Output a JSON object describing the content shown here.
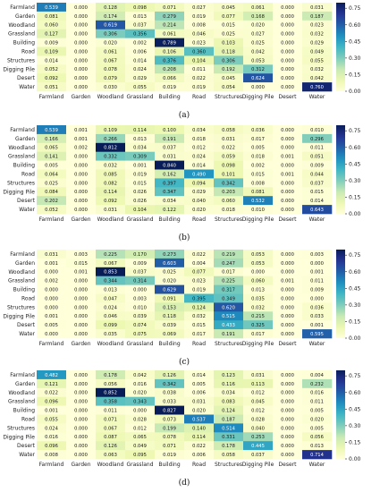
{
  "chart_data": [
    {
      "type": "heatmap",
      "caption": "(a)",
      "rows": [
        "Farmland",
        "Garden",
        "Woodland",
        "Grassland",
        "Building",
        "Road",
        "Structures",
        "Digging Pile",
        "Desert",
        "Water"
      ],
      "cols": [
        "Farmland",
        "Garden",
        "Woodland",
        "Grassland",
        "Building",
        "Road",
        "Structures",
        "Digging Pile",
        "Desert",
        "Water"
      ],
      "values": [
        [
          0.539,
          0.0,
          0.128,
          0.098,
          0.071,
          0.027,
          0.045,
          0.061,
          0.0,
          0.031
        ],
        [
          0.081,
          0.0,
          0.174,
          0.013,
          0.279,
          0.019,
          0.077,
          0.168,
          0.0,
          0.187
        ],
        [
          0.06,
          0.0,
          0.619,
          0.037,
          0.214,
          0.008,
          0.015,
          0.02,
          0.0,
          0.023
        ],
        [
          0.127,
          0.0,
          0.306,
          0.356,
          0.061,
          0.046,
          0.025,
          0.027,
          0.0,
          0.032
        ],
        [
          0.009,
          0.0,
          0.02,
          0.002,
          0.789,
          0.023,
          0.103,
          0.025,
          0.0,
          0.029
        ],
        [
          0.109,
          0.0,
          0.061,
          0.006,
          0.106,
          0.36,
          0.118,
          0.042,
          0.0,
          0.049
        ],
        [
          0.014,
          0.0,
          0.067,
          0.014,
          0.376,
          0.104,
          0.306,
          0.053,
          0.0,
          0.055
        ],
        [
          0.052,
          0.0,
          0.078,
          0.024,
          0.208,
          0.011,
          0.192,
          0.312,
          0.0,
          0.032
        ],
        [
          0.092,
          0.0,
          0.079,
          0.029,
          0.066,
          0.022,
          0.045,
          0.624,
          0.0,
          0.042
        ],
        [
          0.051,
          0.0,
          0.03,
          0.055,
          0.019,
          0.019,
          0.054,
          0.0,
          0.0,
          0.76
        ]
      ],
      "colorbar_ticks": [
        "0.00",
        "0.15",
        "0.30",
        "0.45",
        "0.60",
        "0.75"
      ],
      "vmin": 0,
      "vmax": 0.8
    },
    {
      "type": "heatmap",
      "caption": "(b)",
      "rows": [
        "Farmland",
        "Garden",
        "Woodland",
        "Grassland",
        "Building",
        "Road",
        "Structures",
        "Digging Pile",
        "Desert",
        "Water"
      ],
      "cols": [
        "Farmland",
        "Garden",
        "Woodland",
        "Grassland",
        "Building",
        "Road",
        "Structures",
        "Digging Pile",
        "Desert",
        "Water"
      ],
      "values": [
        [
          0.539,
          0.001,
          0.109,
          0.114,
          0.1,
          0.034,
          0.058,
          0.036,
          0.0,
          0.01
        ],
        [
          0.166,
          0.001,
          0.266,
          0.013,
          0.191,
          0.018,
          0.031,
          0.017,
          0.0,
          0.296
        ],
        [
          0.065,
          0.002,
          0.812,
          0.034,
          0.037,
          0.012,
          0.022,
          0.005,
          0.0,
          0.011
        ],
        [
          0.141,
          0.0,
          0.332,
          0.309,
          0.031,
          0.024,
          0.059,
          0.018,
          0.001,
          0.051
        ],
        [
          0.005,
          0.0,
          0.032,
          0.001,
          0.84,
          0.014,
          0.098,
          0.002,
          0.0,
          0.009
        ],
        [
          0.064,
          0.0,
          0.085,
          0.019,
          0.162,
          0.49,
          0.101,
          0.015,
          0.001,
          0.044
        ],
        [
          0.025,
          0.0,
          0.082,
          0.015,
          0.397,
          0.094,
          0.342,
          0.008,
          0.0,
          0.037
        ],
        [
          0.084,
          0.0,
          0.114,
          0.026,
          0.347,
          0.029,
          0.203,
          0.081,
          0.0,
          0.015
        ],
        [
          0.202,
          0.0,
          0.092,
          0.026,
          0.034,
          0.04,
          0.06,
          0.532,
          0.0,
          0.014
        ],
        [
          0.052,
          0.0,
          0.031,
          0.104,
          0.122,
          0.02,
          0.018,
          0.01,
          0.0,
          0.643
        ]
      ],
      "colorbar_ticks": [
        "0.00",
        "0.15",
        "0.30",
        "0.45",
        "0.60",
        "0.75"
      ],
      "vmin": 0,
      "vmax": 0.8
    },
    {
      "type": "heatmap",
      "caption": "(c)",
      "rows": [
        "Farmland",
        "Garden",
        "Woodland",
        "Grassland",
        "Building",
        "Road",
        "Structures",
        "Digging Pile",
        "Desert",
        "Water"
      ],
      "cols": [
        "Farmland",
        "Garden",
        "Woodland",
        "Grassland",
        "Building",
        "Road",
        "Structures",
        "Digging Pile",
        "Desert",
        "Water"
      ],
      "values": [
        [
          0.031,
          0.003,
          0.225,
          0.17,
          0.273,
          0.022,
          0.219,
          0.053,
          0.0,
          0.003
        ],
        [
          0.001,
          0.015,
          0.067,
          0.009,
          0.603,
          0.004,
          0.247,
          0.053,
          0.0,
          0.0
        ],
        [
          0.0,
          0.001,
          0.853,
          0.037,
          0.025,
          0.077,
          0.017,
          0.0,
          0.0,
          0.001
        ],
        [
          0.002,
          0.0,
          0.344,
          0.314,
          0.02,
          0.023,
          0.225,
          0.06,
          0.001,
          0.011
        ],
        [
          0.0,
          0.0,
          0.013,
          0.0,
          0.629,
          0.019,
          0.317,
          0.013,
          0.0,
          0.009
        ],
        [
          0.0,
          0.0,
          0.047,
          0.003,
          0.091,
          0.395,
          0.349,
          0.035,
          0.0,
          0.0
        ],
        [
          0.0,
          0.0,
          0.024,
          0.01,
          0.153,
          0.124,
          0.62,
          0.032,
          0.0,
          0.036
        ],
        [
          0.001,
          0.0,
          0.046,
          0.039,
          0.118,
          0.032,
          0.515,
          0.215,
          0.0,
          0.033
        ],
        [
          0.005,
          0.0,
          0.099,
          0.074,
          0.039,
          0.015,
          0.433,
          0.325,
          0.0,
          0.001
        ],
        [
          0.0,
          0.0,
          0.035,
          0.075,
          0.069,
          0.017,
          0.191,
          0.017,
          0.0,
          0.595
        ]
      ],
      "colorbar_ticks": [
        "0.00",
        "0.15",
        "0.30",
        "0.45",
        "0.60",
        "0.75"
      ],
      "vmin": 0,
      "vmax": 0.8
    },
    {
      "type": "heatmap",
      "caption": "(d)",
      "rows": [
        "Farmland",
        "Garden",
        "Woodland",
        "Grassland",
        "Building",
        "Road",
        "Structures",
        "Digging Pile",
        "Desert",
        "Water"
      ],
      "cols": [
        "Farmland",
        "Garden",
        "Woodland",
        "Grassland",
        "Building",
        "Road",
        "Structures",
        "Digging Pile",
        "Desert",
        "Water"
      ],
      "values": [
        [
          0.482,
          0.0,
          0.178,
          0.042,
          0.126,
          0.014,
          0.123,
          0.031,
          0.0,
          0.004
        ],
        [
          0.121,
          0.0,
          0.056,
          0.016,
          0.342,
          0.005,
          0.116,
          0.113,
          0.0,
          0.232
        ],
        [
          0.022,
          0.0,
          0.852,
          0.02,
          0.038,
          0.006,
          0.034,
          0.012,
          0.0,
          0.016
        ],
        [
          0.096,
          0.0,
          0.358,
          0.343,
          0.033,
          0.031,
          0.083,
          0.045,
          0.0,
          0.011
        ],
        [
          0.001,
          0.0,
          0.011,
          0.0,
          0.827,
          0.02,
          0.124,
          0.012,
          0.0,
          0.005
        ],
        [
          0.055,
          0.0,
          0.071,
          0.028,
          0.073,
          0.537,
          0.187,
          0.028,
          0.0,
          0.02
        ],
        [
          0.024,
          0.0,
          0.067,
          0.012,
          0.199,
          0.14,
          0.514,
          0.04,
          0.0,
          0.005
        ],
        [
          0.016,
          0.0,
          0.087,
          0.065,
          0.078,
          0.114,
          0.331,
          0.253,
          0.0,
          0.056
        ],
        [
          0.096,
          0.0,
          0.126,
          0.049,
          0.071,
          0.022,
          0.178,
          0.445,
          0.0,
          0.013
        ],
        [
          0.008,
          0.0,
          0.063,
          0.095,
          0.019,
          0.006,
          0.058,
          0.037,
          0.0,
          0.714
        ]
      ],
      "colorbar_ticks": [
        "0.00",
        "0.15",
        "0.30",
        "0.45",
        "0.60",
        "0.75"
      ],
      "vmin": 0,
      "vmax": 0.8
    }
  ]
}
